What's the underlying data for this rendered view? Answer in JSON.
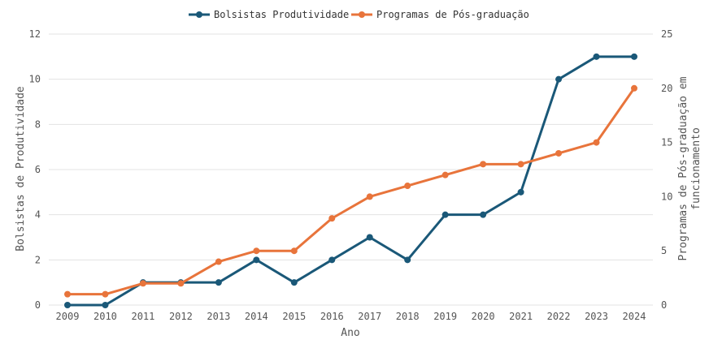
{
  "chart_data": {
    "type": "line",
    "x": [
      2009,
      2010,
      2011,
      2012,
      2013,
      2014,
      2015,
      2016,
      2017,
      2018,
      2019,
      2020,
      2021,
      2022,
      2023,
      2024
    ],
    "series": [
      {
        "name": "Bolsistas Produtividade",
        "axis": "left",
        "color": "#1a5878",
        "values": [
          0,
          0,
          1,
          1,
          1,
          2,
          1,
          2,
          3,
          2,
          4,
          4,
          5,
          10,
          11,
          11
        ]
      },
      {
        "name": "Programas de Pós-graduação",
        "axis": "right",
        "color": "#e8743b",
        "values": [
          1,
          1,
          2,
          2,
          4,
          5,
          5,
          8,
          10,
          11,
          12,
          13,
          13,
          14,
          15,
          20
        ]
      }
    ],
    "xlabel": "Ano",
    "ylabel_left": "Bolsistas de Produtividade",
    "ylabel_right_lines": [
      "Programas de Pós-graduação em",
      "funcionamento"
    ],
    "ylim_left": [
      0,
      12
    ],
    "yticks_left": [
      "0",
      "2",
      "4",
      "6",
      "8",
      "10",
      "12"
    ],
    "ylim_right": [
      0,
      25
    ],
    "yticks_right": [
      "0",
      "5",
      "10",
      "15",
      "20",
      "25"
    ],
    "legend_position": "top-center",
    "grid": true
  }
}
